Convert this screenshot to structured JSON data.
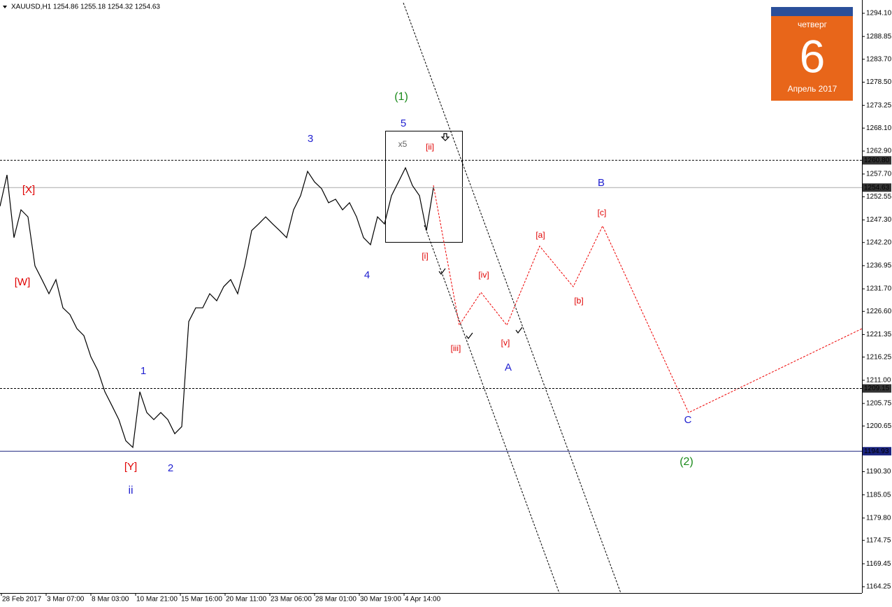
{
  "header": {
    "title": "XAUUSD,H1  1254.86 1255.18 1254.32 1254.63"
  },
  "calendar": {
    "weekday": "четверг",
    "day": "6",
    "month": "Апрель 2017"
  },
  "y_axis": {
    "ylim": [
      1164.25,
      1294.1
    ],
    "ticks": [
      {
        "value": 1294.1,
        "label": "1294.10"
      },
      {
        "value": 1288.85,
        "label": "1288.85"
      },
      {
        "value": 1283.7,
        "label": "1283.70"
      },
      {
        "value": 1278.5,
        "label": "1278.50"
      },
      {
        "value": 1273.25,
        "label": "1273.25"
      },
      {
        "value": 1268.1,
        "label": "1268.10"
      },
      {
        "value": 1262.9,
        "label": "1262.90"
      },
      {
        "value": 1257.7,
        "label": "1257.70"
      },
      {
        "value": 1252.55,
        "label": "1252.55"
      },
      {
        "value": 1247.3,
        "label": "1247.30"
      },
      {
        "value": 1242.2,
        "label": "1242.20"
      },
      {
        "value": 1236.95,
        "label": "1236.95"
      },
      {
        "value": 1231.7,
        "label": "1231.70"
      },
      {
        "value": 1226.6,
        "label": "1226.60"
      },
      {
        "value": 1221.35,
        "label": "1221.35"
      },
      {
        "value": 1216.25,
        "label": "1216.25"
      },
      {
        "value": 1211.0,
        "label": "1211.00"
      },
      {
        "value": 1205.75,
        "label": "1205.75"
      },
      {
        "value": 1200.65,
        "label": "1200.65"
      },
      {
        "value": 1190.3,
        "label": "1190.30"
      },
      {
        "value": 1185.05,
        "label": "1185.05"
      },
      {
        "value": 1179.8,
        "label": "1179.80"
      },
      {
        "value": 1174.75,
        "label": "1174.75"
      },
      {
        "value": 1169.45,
        "label": "1169.45"
      },
      {
        "value": 1164.25,
        "label": "1164.25"
      }
    ],
    "levels": [
      {
        "value": 1260.8,
        "label": "1260.80"
      },
      {
        "value": 1254.63,
        "label": "1254.63"
      },
      {
        "value": 1209.15,
        "label": "1209.15"
      },
      {
        "value": 1194.93,
        "label": "1194.93"
      }
    ]
  },
  "x_axis": {
    "labels": [
      "28 Feb 2017",
      "3 Mar 07:00",
      "8 Mar 03:00",
      "10 Mar 21:00",
      "15 Mar 16:00",
      "20 Mar 11:00",
      "23 Mar 06:00",
      "28 Mar 01:00",
      "30 Mar 19:00",
      "4 Apr 14:00"
    ]
  },
  "price_path": [
    1250.4,
    1257.5,
    1243.3,
    1249.6,
    1248.0,
    1236.9,
    1233.8,
    1230.6,
    1233.8,
    1227.4,
    1225.9,
    1222.7,
    1221.1,
    1216.3,
    1213.2,
    1208.4,
    1205.3,
    1202.1,
    1197.3,
    1195.8,
    1208.4,
    1203.7,
    1202.1,
    1203.7,
    1202.1,
    1198.9,
    1200.5,
    1224.3,
    1227.4,
    1227.4,
    1230.6,
    1229.0,
    1232.2,
    1233.8,
    1230.6,
    1236.9,
    1244.9,
    1246.4,
    1248.0,
    1246.4,
    1244.9,
    1243.3,
    1249.6,
    1252.8,
    1258.3,
    1255.9,
    1254.4,
    1251.2,
    1252.0,
    1249.6,
    1251.2,
    1248.0,
    1243.3,
    1241.7,
    1248.0,
    1246.4,
    1252.8,
    1255.9,
    1259.1,
    1255.1,
    1252.8,
    1244.9,
    1254.6
  ],
  "wave_labels": [
    "(1)",
    "5",
    "3",
    "x5",
    "[ii]",
    "[X]",
    "B",
    "[c]",
    "[a]",
    "4",
    "[i]",
    "[iv]",
    "[W]",
    "[b]",
    "[v]",
    "[iii]",
    "A",
    "1",
    "C",
    "(2)",
    "[Y]",
    "2",
    "ii"
  ]
}
